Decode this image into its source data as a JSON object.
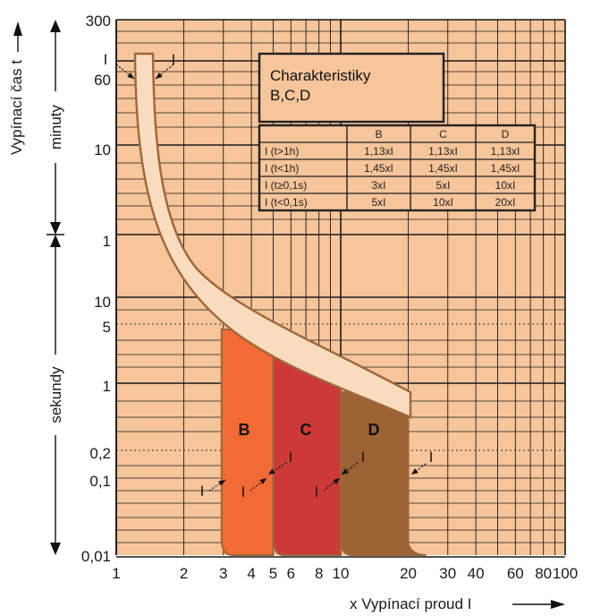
{
  "chart_data": {
    "type": "area",
    "title": "Charakteristiky",
    "subtitle": "B,C,D",
    "xlabel": "x Vypínací proud I",
    "ylabel": "Vypínací čas t",
    "xscale": "log",
    "xlim": [
      1,
      100
    ],
    "x_ticks": [
      "1",
      "2",
      "3",
      "4",
      "5",
      "6",
      "8",
      "10",
      "20",
      "30",
      "40",
      "60",
      "80",
      "100"
    ],
    "y_ticks_minutes": [
      "300",
      "60",
      "10",
      "1"
    ],
    "y_ticks_seconds": [
      "10",
      "5",
      "1",
      "0,2",
      "0,1",
      "0,01"
    ],
    "y_section_minutes": "minuty",
    "y_section_seconds": "sekundy",
    "zones": [
      {
        "name": "B",
        "from": 3,
        "to": 5,
        "color": "#f26b35"
      },
      {
        "name": "C",
        "from": 5,
        "to": 10,
        "color": "#cc3a38"
      },
      {
        "name": "D",
        "from": 10,
        "to": 20,
        "color": "#9c6334"
      }
    ],
    "thermal_band": {
      "lower_current": 1.13,
      "upper_current": 1.45,
      "color": "#f8dcbd"
    },
    "annotations": {
      "i1": "I",
      "i2": "I",
      "i4": "I",
      "i5": "I"
    },
    "table": {
      "headers": [
        "",
        "B",
        "C",
        "D"
      ],
      "rows": [
        [
          "I (t>1h)",
          "1,13xI",
          "1,13xI",
          "1,13xI"
        ],
        [
          "I (t<1h)",
          "1,45xI",
          "1,45xI",
          "1,45xI"
        ],
        [
          "I (t≥0,1s)",
          "3xI",
          "5xI",
          "10xI"
        ],
        [
          "I (t<0,1s)",
          "5xI",
          "10xI",
          "20xI"
        ]
      ]
    },
    "colors": {
      "background": "#f6c59a",
      "grid": "#1a1a1a",
      "outline": "#a0663a"
    }
  }
}
